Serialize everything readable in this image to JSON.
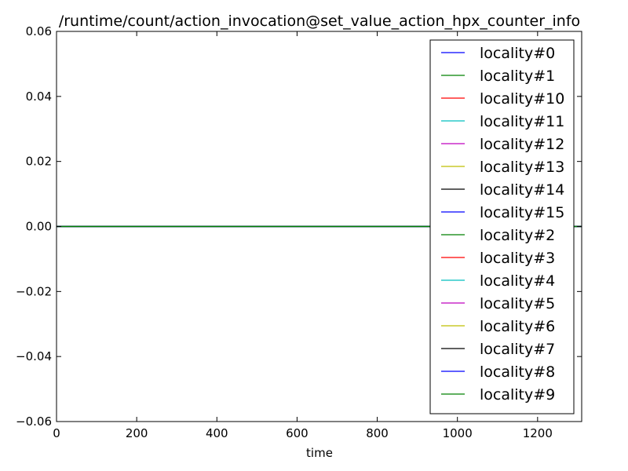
{
  "chart_data": {
    "type": "line",
    "title": "/runtime/count/action_invocation@set_value_action_hpx_counter_info",
    "xlabel": "time",
    "ylabel": "",
    "xlim": [
      0,
      1310
    ],
    "ylim": [
      -0.06,
      0.06
    ],
    "xticks": [
      0,
      200,
      400,
      600,
      800,
      1000,
      1200
    ],
    "xtick_labels": [
      "0",
      "200",
      "400",
      "600",
      "800",
      "1000",
      "1200"
    ],
    "yticks": [
      0.06,
      0.04,
      0.02,
      0.0,
      -0.02,
      -0.04,
      -0.06
    ],
    "ytick_labels": [
      "0.06",
      "0.04",
      "0.02",
      "0.00",
      "−0.02",
      "−0.04",
      "−0.06"
    ],
    "grid": false,
    "legend_position": "upper-right",
    "series": [
      {
        "name": "locality#0",
        "color": "#0000ff",
        "x": [
          0,
          1310
        ],
        "y": [
          0,
          0
        ]
      },
      {
        "name": "locality#1",
        "color": "#008000",
        "x": [
          0,
          1310
        ],
        "y": [
          0,
          0
        ]
      },
      {
        "name": "locality#10",
        "color": "#ff0000",
        "x": [
          0,
          1310
        ],
        "y": [
          0,
          0
        ]
      },
      {
        "name": "locality#11",
        "color": "#00bfbf",
        "x": [
          0,
          1310
        ],
        "y": [
          0,
          0
        ]
      },
      {
        "name": "locality#12",
        "color": "#bf00bf",
        "x": [
          0,
          1310
        ],
        "y": [
          0,
          0
        ]
      },
      {
        "name": "locality#13",
        "color": "#bfbf00",
        "x": [
          0,
          1310
        ],
        "y": [
          0,
          0
        ]
      },
      {
        "name": "locality#14",
        "color": "#000000",
        "x": [
          0,
          1310
        ],
        "y": [
          0,
          0
        ]
      },
      {
        "name": "locality#15",
        "color": "#0000ff",
        "x": [
          0,
          1310
        ],
        "y": [
          0,
          0
        ]
      },
      {
        "name": "locality#2",
        "color": "#008000",
        "x": [
          0,
          1310
        ],
        "y": [
          0,
          0
        ]
      },
      {
        "name": "locality#3",
        "color": "#ff0000",
        "x": [
          0,
          1310
        ],
        "y": [
          0,
          0
        ]
      },
      {
        "name": "locality#4",
        "color": "#00bfbf",
        "x": [
          0,
          1310
        ],
        "y": [
          0,
          0
        ]
      },
      {
        "name": "locality#5",
        "color": "#bf00bf",
        "x": [
          0,
          1310
        ],
        "y": [
          0,
          0
        ]
      },
      {
        "name": "locality#6",
        "color": "#bfbf00",
        "x": [
          0,
          1310
        ],
        "y": [
          0,
          0
        ]
      },
      {
        "name": "locality#7",
        "color": "#000000",
        "x": [
          0,
          1310
        ],
        "y": [
          0,
          0
        ]
      },
      {
        "name": "locality#8",
        "color": "#0000ff",
        "x": [
          0,
          1310
        ],
        "y": [
          0,
          0
        ]
      },
      {
        "name": "locality#9",
        "color": "#008000",
        "x": [
          0,
          1310
        ],
        "y": [
          0,
          0
        ]
      }
    ]
  }
}
